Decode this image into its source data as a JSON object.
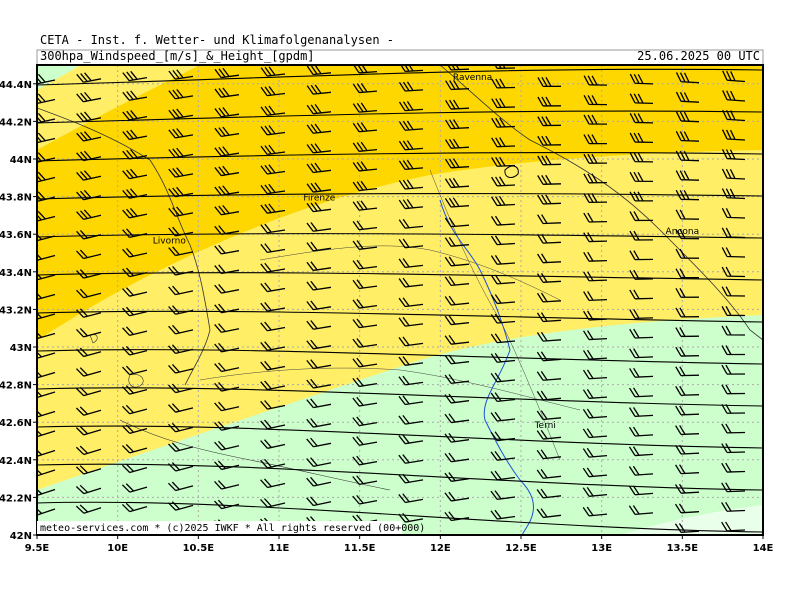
{
  "header": {
    "producer": "CETA - Inst. f. Wetter- und Klimafolgenanalysen -",
    "product": "300hpa_Windspeed_[m/s]_&_Height_[gpdm]",
    "valid_time": "25.06.2025 00 UTC"
  },
  "footer": {
    "copyright": "meteo-services.com * (c)2025 IWKF * All rights reserved (00+000)"
  },
  "map": {
    "lon_range": [
      9.5,
      14.0
    ],
    "lat_range": [
      42.0,
      44.5
    ],
    "lon_ticks": [
      "9.5E",
      "10E",
      "10.5E",
      "11E",
      "11.5E",
      "12E",
      "12.5E",
      "13E",
      "13.5E",
      "14E"
    ],
    "lat_ticks": [
      "42N",
      "42.2N",
      "42.4N",
      "42.6N",
      "42.8N",
      "43N",
      "43.2N",
      "43.4N",
      "43.6N",
      "43.8N",
      "44N",
      "44.2N",
      "44.4N"
    ],
    "cities": [
      {
        "name": "Ravenna",
        "lon": 12.2,
        "lat": 44.42
      },
      {
        "name": "Firenze",
        "lon": 11.25,
        "lat": 43.78
      },
      {
        "name": "Livorno",
        "lon": 10.32,
        "lat": 43.55
      },
      {
        "name": "Ancona",
        "lon": 13.5,
        "lat": 43.6
      },
      {
        "name": "Terni",
        "lon": 12.65,
        "lat": 42.57
      }
    ],
    "colors": {
      "strong": "#ffd700",
      "medium": "#ffee66",
      "light": "#ccffcc",
      "frame": "#000000",
      "grid": "#aaaaaa",
      "river": "#1e4fd6"
    }
  }
}
